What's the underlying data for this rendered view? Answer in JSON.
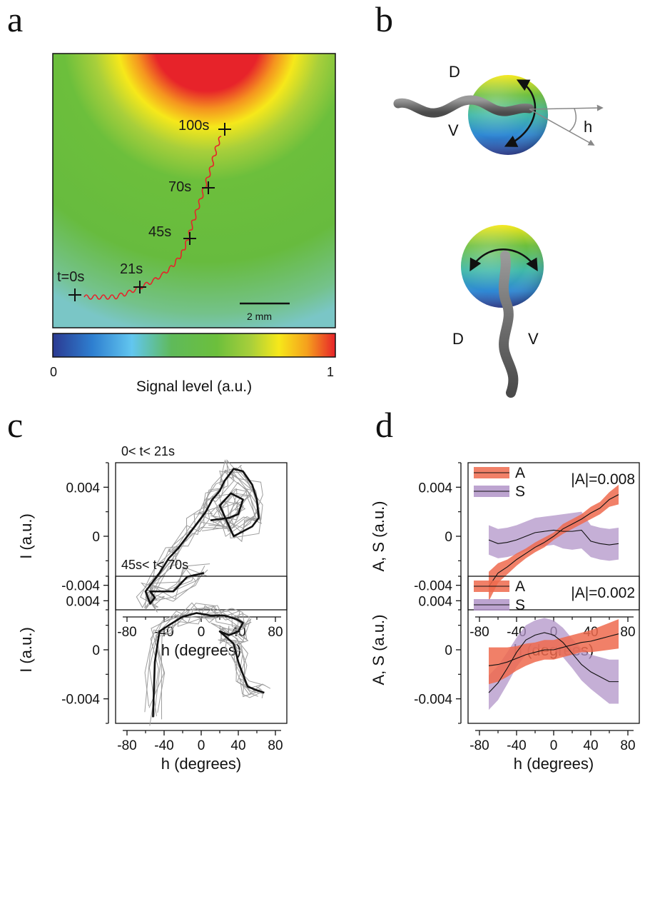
{
  "panels": {
    "a": "a",
    "b": "b",
    "c": "c",
    "d": "d"
  },
  "panel_a": {
    "time_labels": [
      "t=0s",
      "21s",
      "45s",
      "70s",
      "100s"
    ],
    "scale_bar_label": "2 mm",
    "colorbar": {
      "min_label": "0",
      "max_label": "1",
      "title": "Signal level (a.u.)",
      "colors": [
        "#2b3a92",
        "#2e7fd0",
        "#62c6ef",
        "#5fba5a",
        "#6cbf3c",
        "#a8cf3b",
        "#f6e81a",
        "#f5a01d",
        "#e7232a"
      ]
    },
    "trajectory_color": "#e7232a",
    "background_colors": {
      "center": "#e7232a",
      "mid": "#f6e81a",
      "outer": "#67bb3e",
      "far": "#7ac6c6"
    }
  },
  "panel_b": {
    "top": {
      "d": "D",
      "v": "V",
      "h": "h"
    },
    "bottom": {
      "d": "D",
      "v": "V"
    }
  },
  "chart_data": [
    {
      "type": "line",
      "panel": "c-top",
      "title": "0< t< 21s",
      "xlabel": "h (degrees)",
      "ylabel": "I (a.u.)",
      "xlim": [
        -80,
        80
      ],
      "ylim": [
        -0.006,
        0.006
      ],
      "xticks": [
        "-80",
        "-40",
        "0",
        "40",
        "80"
      ],
      "yticks": [
        "0.004",
        "0",
        "-0.004"
      ],
      "series": [
        {
          "style": "mean",
          "x": [
            3,
            -15,
            -30,
            -55,
            -50,
            -55,
            -60,
            -45,
            -35,
            -25,
            -15,
            -5,
            5,
            12,
            20,
            25,
            35,
            45,
            55,
            60,
            62,
            55,
            35,
            20,
            32,
            45,
            40,
            30,
            10
          ],
          "y": [
            -0.003,
            -0.0033,
            -0.0045,
            -0.0045,
            -0.005,
            -0.0055,
            -0.0045,
            -0.003,
            -0.0018,
            -0.001,
            0.0,
            0.001,
            0.002,
            0.003,
            0.0037,
            0.0045,
            0.0055,
            0.0053,
            0.0042,
            0.003,
            0.0015,
            0.0008,
            0.0,
            0.0025,
            0.0035,
            0.003,
            0.0018,
            0.0015,
            0.0013
          ]
        }
      ]
    },
    {
      "type": "line",
      "panel": "c-bottom",
      "title": "45s< t< 70s",
      "xlabel": "h (degrees)",
      "ylabel": "I (a.u.)",
      "xlim": [
        -80,
        80
      ],
      "ylim": [
        -0.006,
        0.006
      ],
      "xticks": [
        "-80",
        "-40",
        "0",
        "40",
        "80"
      ],
      "yticks": [
        "0.004",
        "0",
        "-0.004"
      ],
      "series": [
        {
          "style": "mean",
          "x": [
            -52,
            -50,
            -45,
            -35,
            -20,
            -5,
            10,
            25,
            38,
            45,
            40,
            30,
            20,
            35,
            40,
            45,
            50,
            60,
            68
          ],
          "y": [
            -0.0055,
            -0.001,
            0.0015,
            0.002,
            0.0027,
            0.003,
            0.0028,
            0.0028,
            0.0025,
            0.0022,
            0.0015,
            0.0012,
            0.0015,
            0.0005,
            -0.001,
            -0.002,
            -0.003,
            -0.0033,
            -0.0035
          ]
        }
      ]
    },
    {
      "type": "area",
      "panel": "d-top",
      "xlabel": "h (degrees)",
      "ylabel": "A, S (a.u.)",
      "xlim": [
        -80,
        80
      ],
      "ylim": [
        -0.006,
        0.006
      ],
      "xticks": [
        "-80",
        "-40",
        "0",
        "40",
        "80"
      ],
      "yticks": [
        "0.004",
        "0",
        "-0.004"
      ],
      "annotation": "|A|=0.008",
      "x": [
        -70,
        -60,
        -50,
        -40,
        -30,
        -20,
        -10,
        0,
        10,
        20,
        30,
        40,
        50,
        60,
        70
      ],
      "series": [
        {
          "name": "A",
          "color": "#ef6a4e",
          "values": [
            -0.0041,
            -0.003,
            -0.0025,
            -0.0019,
            -0.0014,
            -0.0009,
            -0.0005,
            0.0,
            0.0006,
            0.001,
            0.0014,
            0.0019,
            0.0023,
            0.003,
            0.0034
          ],
          "band": [
            0.0012,
            0.0008,
            0.0006,
            0.0005,
            0.0004,
            0.0004,
            0.0004,
            0.0003,
            0.0004,
            0.0004,
            0.0004,
            0.0005,
            0.0005,
            0.0006,
            0.0008
          ]
        },
        {
          "name": "S",
          "color": "#b294c8",
          "values": [
            -0.0003,
            -0.0006,
            -0.0005,
            -0.0003,
            0.0,
            0.0003,
            0.0004,
            0.0005,
            0.0004,
            0.0004,
            0.0005,
            -0.0004,
            -0.0006,
            -0.0007,
            -0.0006
          ],
          "band": [
            0.0012,
            0.0012,
            0.0012,
            0.0012,
            0.0012,
            0.0012,
            0.0012,
            0.0012,
            0.0014,
            0.0015,
            0.0015,
            0.0013,
            0.0013,
            0.0013,
            0.0013
          ]
        }
      ]
    },
    {
      "type": "area",
      "panel": "d-bottom",
      "xlabel": "h (degrees)",
      "ylabel": "A, S (a.u.)",
      "xlim": [
        -80,
        80
      ],
      "ylim": [
        -0.006,
        0.006
      ],
      "xticks": [
        "-80",
        "-40",
        "0",
        "40",
        "80"
      ],
      "yticks": [
        "0.004",
        "0",
        "-0.004"
      ],
      "annotation": "|A|=0.002",
      "x": [
        -70,
        -60,
        -50,
        -40,
        -30,
        -20,
        -10,
        0,
        10,
        20,
        30,
        40,
        50,
        60,
        70
      ],
      "series": [
        {
          "name": "A",
          "color": "#ef6a4e",
          "values": [
            -0.0013,
            -0.0012,
            -0.001,
            -0.0007,
            -0.0004,
            -0.0002,
            0.0,
            0.0,
            0.0002,
            0.0004,
            0.0006,
            0.0007,
            0.0009,
            0.0011,
            0.0013
          ],
          "band": [
            0.0015,
            0.0014,
            0.0012,
            0.001,
            0.0009,
            0.0008,
            0.0008,
            0.0008,
            0.0008,
            0.0008,
            0.0008,
            0.0009,
            0.001,
            0.0011,
            0.0012
          ]
        },
        {
          "name": "S",
          "color": "#b294c8",
          "values": [
            -0.0035,
            -0.0027,
            -0.0015,
            -0.0002,
            0.0008,
            0.0012,
            0.0014,
            0.0012,
            0.0006,
            -0.0003,
            -0.0012,
            -0.0018,
            -0.0022,
            -0.0026,
            -0.0026
          ],
          "band": [
            0.0014,
            0.0014,
            0.0013,
            0.0012,
            0.0012,
            0.0012,
            0.0012,
            0.0012,
            0.0012,
            0.0012,
            0.0013,
            0.0014,
            0.0016,
            0.0018,
            0.0018
          ]
        }
      ]
    }
  ]
}
